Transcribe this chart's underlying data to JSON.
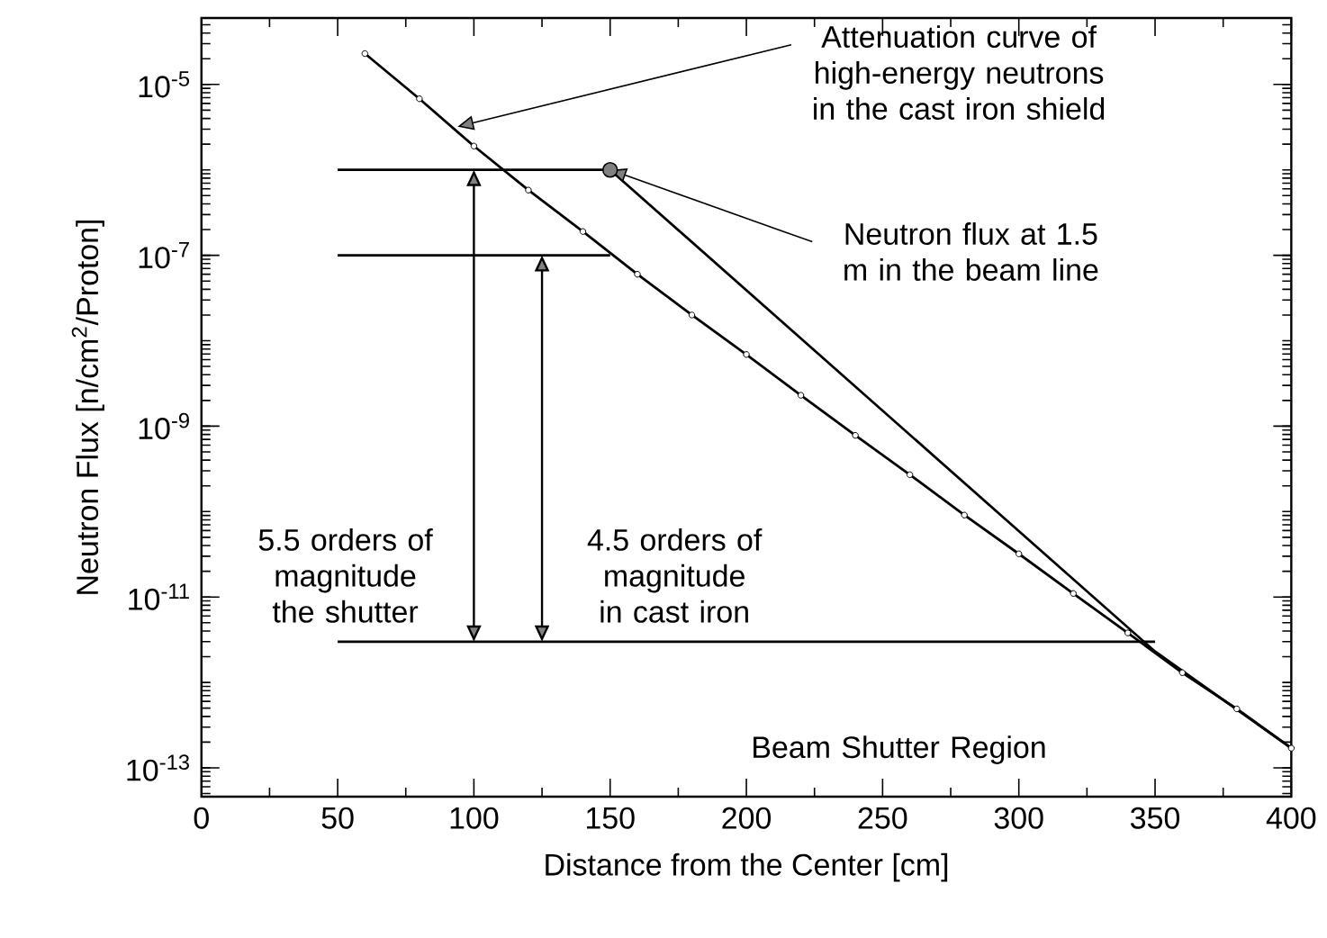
{
  "chart_data": {
    "type": "line",
    "xlabel": "Distance from the Center  [cm]",
    "ylabel": "Neutron Flux  [n/cm$^{2}$/Proton]",
    "log": "y",
    "grid": false,
    "xlim": [
      0,
      400
    ],
    "xticks": [
      0,
      50,
      100,
      150,
      200,
      250,
      300,
      350,
      400
    ],
    "ylim": [
      4.6e-14,
      6e-05
    ],
    "yticks": [
      {
        "value": 1e-13,
        "label": "10$^{-13}$"
      },
      {
        "value": 1e-11,
        "label": "10$^{-11}$"
      },
      {
        "value": 1e-09,
        "label": "10$^{-9}$"
      },
      {
        "value": 1e-07,
        "label": "10$^{-7}$"
      },
      {
        "value": 1e-05,
        "label": "10$^{-5}$"
      }
    ],
    "series": [
      {
        "type": "line",
        "color": "#000000",
        "marker": "circle",
        "x": [
          60,
          80,
          100,
          120,
          140,
          160,
          180,
          200,
          220,
          240,
          260,
          280,
          300,
          320,
          340,
          360,
          380,
          400
        ],
        "values": [
          2.3e-05,
          6.8e-06,
          1.9e-06,
          5.8e-07,
          1.9e-07,
          6e-08,
          2e-08,
          6.9e-09,
          2.3e-09,
          7.8e-10,
          2.7e-10,
          9.1e-11,
          3.2e-11,
          1.1e-11,
          3.8e-12,
          1.3e-12,
          4.9e-13,
          1.7e-13
        ]
      },
      {
        "type": "line",
        "color": "#000000",
        "marker": "none",
        "x": [
          150,
          350,
          400
        ],
        "values": [
          1e-06,
          2.3e-12,
          1.7e-13
        ]
      },
      {
        "type": "line",
        "color": "#000000",
        "marker": "none",
        "x": [
          50,
          150
        ],
        "values": [
          1e-06,
          1e-06
        ]
      },
      {
        "type": "line",
        "color": "#000000",
        "marker": "none",
        "x": [
          50,
          150
        ],
        "values": [
          1e-07,
          1e-07
        ]
      },
      {
        "type": "line",
        "color": "#000000",
        "marker": "none",
        "x": [
          50,
          350
        ],
        "values": [
          3e-12,
          3e-12
        ]
      },
      {
        "type": "scatter",
        "color": "#808080",
        "marker": "circle",
        "x": [
          150
        ],
        "values": [
          1e-06
        ]
      }
    ],
    "annotations": [
      {
        "text": "Attenuation curve of high-energy neutrons in the cast iron shield",
        "x": 94,
        "y": 3.2e-06
      },
      {
        "text": "Neutron flux at 1.5 m in the beam line",
        "x": 150,
        "y": 1e-06
      },
      "5.5 orders of magnitude the shutter",
      "4.5 orders of magnitude in cast iron",
      "Beam Shutter Region"
    ]
  }
}
